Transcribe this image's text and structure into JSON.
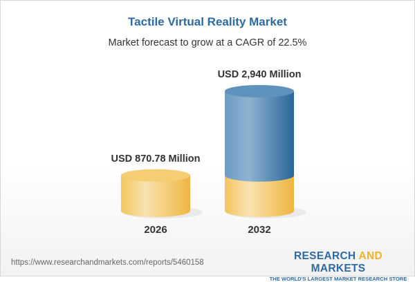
{
  "chart_data": {
    "type": "bar",
    "style": "3d-cylinder",
    "title": "Tactile Virtual Reality Market",
    "subtitle": "Market forecast to grow at a CAGR of 22.5%",
    "categories": [
      "2026",
      "2032"
    ],
    "values": [
      870.78,
      2940
    ],
    "data_labels": [
      "USD 870.78 Million",
      "USD 2,940 Million"
    ],
    "unit": "USD Million",
    "colors": {
      "base": "#f2c256",
      "growth": "#3f7fb3",
      "title": "#2d6aa3"
    }
  },
  "footer": {
    "url": "https://www.researchandmarkets.com/reports/5460158",
    "logo_part1": "RESEARCH ",
    "logo_part2": "AND",
    "logo_part3": " MARKETS",
    "tagline": "THE WORLD'S LARGEST MARKET RESEARCH STORE"
  }
}
